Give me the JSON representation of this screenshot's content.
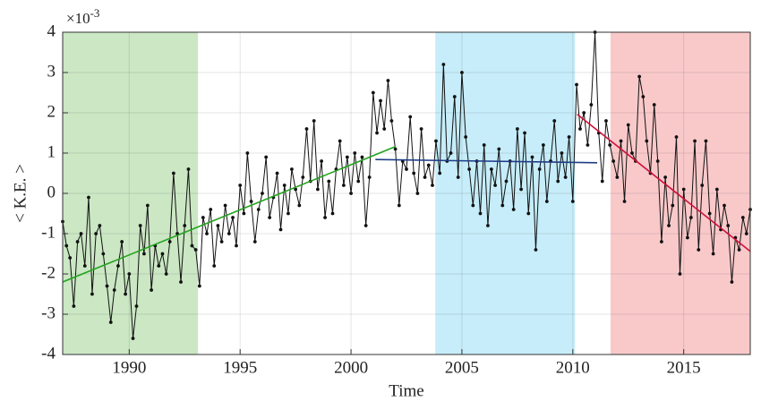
{
  "chart_data": {
    "type": "line",
    "x_label": "Time",
    "y_label": "< K.E. >",
    "y_offset_label": {
      "base": "×10",
      "exponent": "-3"
    },
    "xlim": [
      1987,
      2018
    ],
    "ylim": [
      -4,
      4
    ],
    "xticks": [
      1990,
      1995,
      2000,
      2005,
      2010,
      2015
    ],
    "yticks": [
      -4,
      -3,
      -2,
      -1,
      0,
      1,
      2,
      3,
      4
    ],
    "grid": true,
    "shaded_regions": [
      {
        "x0": 1987,
        "x1": 1993.1,
        "color": "#cbe7c4"
      },
      {
        "x0": 2003.8,
        "x1": 2010.1,
        "color": "#c6edf9"
      },
      {
        "x0": 2011.7,
        "x1": 2018,
        "color": "#f9c9ca"
      }
    ],
    "fits": [
      {
        "x": [
          1987,
          2002
        ],
        "values": [
          -2.2,
          1.16
        ],
        "color": "#23a31f"
      },
      {
        "x": [
          2001.1,
          2011.1
        ],
        "values": [
          0.84,
          0.76
        ],
        "color": "#1f3c88"
      },
      {
        "x": [
          2010.2,
          2018
        ],
        "values": [
          1.96,
          -1.44
        ],
        "color": "#d0103a"
      }
    ],
    "series": [
      {
        "color": "#111111",
        "x": [
          1987,
          1987.17,
          1987.33,
          1987.5,
          1987.67,
          1987.83,
          1988,
          1988.17,
          1988.33,
          1988.5,
          1988.67,
          1988.83,
          1989,
          1989.17,
          1989.33,
          1989.5,
          1989.67,
          1989.83,
          1990,
          1990.17,
          1990.33,
          1990.5,
          1990.67,
          1990.83,
          1991,
          1991.17,
          1991.33,
          1991.5,
          1991.67,
          1991.83,
          1992,
          1992.17,
          1992.33,
          1992.5,
          1992.67,
          1992.83,
          1993,
          1993.17,
          1993.33,
          1993.5,
          1993.67,
          1993.83,
          1994,
          1994.17,
          1994.33,
          1994.5,
          1994.67,
          1994.83,
          1995,
          1995.17,
          1995.33,
          1995.5,
          1995.67,
          1995.83,
          1996,
          1996.17,
          1996.33,
          1996.5,
          1996.67,
          1996.83,
          1997,
          1997.17,
          1997.33,
          1997.5,
          1997.67,
          1997.83,
          1998,
          1998.17,
          1998.33,
          1998.5,
          1998.67,
          1998.83,
          1999,
          1999.17,
          1999.33,
          1999.5,
          1999.67,
          1999.83,
          2000,
          2000.17,
          2000.33,
          2000.5,
          2000.67,
          2000.83,
          2001,
          2001.17,
          2001.33,
          2001.5,
          2001.67,
          2001.83,
          2002,
          2002.17,
          2002.33,
          2002.5,
          2002.67,
          2002.83,
          2003,
          2003.17,
          2003.33,
          2003.5,
          2003.67,
          2003.83,
          2004,
          2004.17,
          2004.33,
          2004.5,
          2004.67,
          2004.83,
          2005,
          2005.17,
          2005.33,
          2005.5,
          2005.67,
          2005.83,
          2006,
          2006.17,
          2006.33,
          2006.5,
          2006.67,
          2006.83,
          2007,
          2007.17,
          2007.33,
          2007.5,
          2007.67,
          2007.83,
          2008,
          2008.17,
          2008.33,
          2008.5,
          2008.67,
          2008.83,
          2009,
          2009.17,
          2009.33,
          2009.5,
          2009.67,
          2009.83,
          2010,
          2010.17,
          2010.33,
          2010.5,
          2010.67,
          2010.83,
          2011,
          2011.17,
          2011.33,
          2011.5,
          2011.67,
          2011.83,
          2012,
          2012.17,
          2012.33,
          2012.5,
          2012.67,
          2012.83,
          2013,
          2013.17,
          2013.33,
          2013.5,
          2013.67,
          2013.83,
          2014,
          2014.17,
          2014.33,
          2014.5,
          2014.67,
          2014.83,
          2015,
          2015.17,
          2015.33,
          2015.5,
          2015.67,
          2015.83,
          2016,
          2016.17,
          2016.33,
          2016.5,
          2016.67,
          2016.83,
          2017,
          2017.17,
          2017.33,
          2017.5,
          2017.67,
          2017.83,
          2018
        ],
        "values": [
          -0.7,
          -1.3,
          -1.6,
          -2.8,
          -1.2,
          -1.0,
          -1.8,
          -0.1,
          -2.5,
          -1.0,
          -0.8,
          -1.5,
          -2.3,
          -3.2,
          -2.4,
          -1.8,
          -1.2,
          -2.5,
          -2.0,
          -3.6,
          -2.8,
          -0.8,
          -1.5,
          -0.3,
          -2.4,
          -1.3,
          -1.8,
          -1.5,
          -2.0,
          -1.2,
          0.5,
          -1.0,
          -2.2,
          -0.8,
          0.6,
          -1.3,
          -1.4,
          -2.3,
          -0.6,
          -1.0,
          -0.4,
          -1.8,
          -0.8,
          -1.2,
          -0.3,
          -1.0,
          -0.6,
          -1.3,
          0.2,
          -0.5,
          1.0,
          -0.2,
          -1.2,
          -0.4,
          0.0,
          0.9,
          -0.6,
          -0.1,
          0.5,
          -0.9,
          0.2,
          -0.5,
          0.6,
          0.1,
          -0.3,
          0.4,
          1.6,
          0.3,
          1.8,
          0.1,
          0.8,
          -0.6,
          0.3,
          -0.5,
          0.6,
          1.3,
          0.2,
          0.9,
          0.0,
          1.0,
          0.3,
          0.9,
          -0.8,
          0.4,
          2.5,
          1.5,
          2.3,
          1.6,
          2.8,
          1.8,
          1.1,
          -0.3,
          0.8,
          0.6,
          1.9,
          0.5,
          0.0,
          1.6,
          0.4,
          0.7,
          0.2,
          1.3,
          0.5,
          3.2,
          0.8,
          1.0,
          2.4,
          0.4,
          3.0,
          1.4,
          0.6,
          -0.3,
          0.8,
          -0.5,
          1.2,
          -0.8,
          0.6,
          0.2,
          1.1,
          -0.3,
          0.3,
          0.8,
          -0.4,
          1.6,
          0.1,
          1.5,
          -0.5,
          0.9,
          -1.4,
          0.6,
          1.2,
          -0.2,
          0.8,
          1.8,
          0.3,
          1.0,
          0.4,
          1.4,
          -0.2,
          2.7,
          1.6,
          2.0,
          1.2,
          2.2,
          4.0,
          1.5,
          0.3,
          1.8,
          1.2,
          0.8,
          0.4,
          1.3,
          -0.2,
          1.7,
          1.0,
          0.8,
          2.9,
          2.4,
          1.3,
          0.5,
          2.2,
          0.8,
          -1.2,
          0.4,
          -0.8,
          -0.3,
          1.4,
          -2.0,
          0.1,
          -1.1,
          -0.6,
          1.3,
          -1.4,
          0.2,
          1.3,
          -0.5,
          -1.5,
          0.1,
          -0.9,
          -0.3,
          -0.8,
          -2.2,
          -1.1,
          -1.4,
          -0.6,
          -1.0,
          -0.4
        ]
      }
    ]
  }
}
